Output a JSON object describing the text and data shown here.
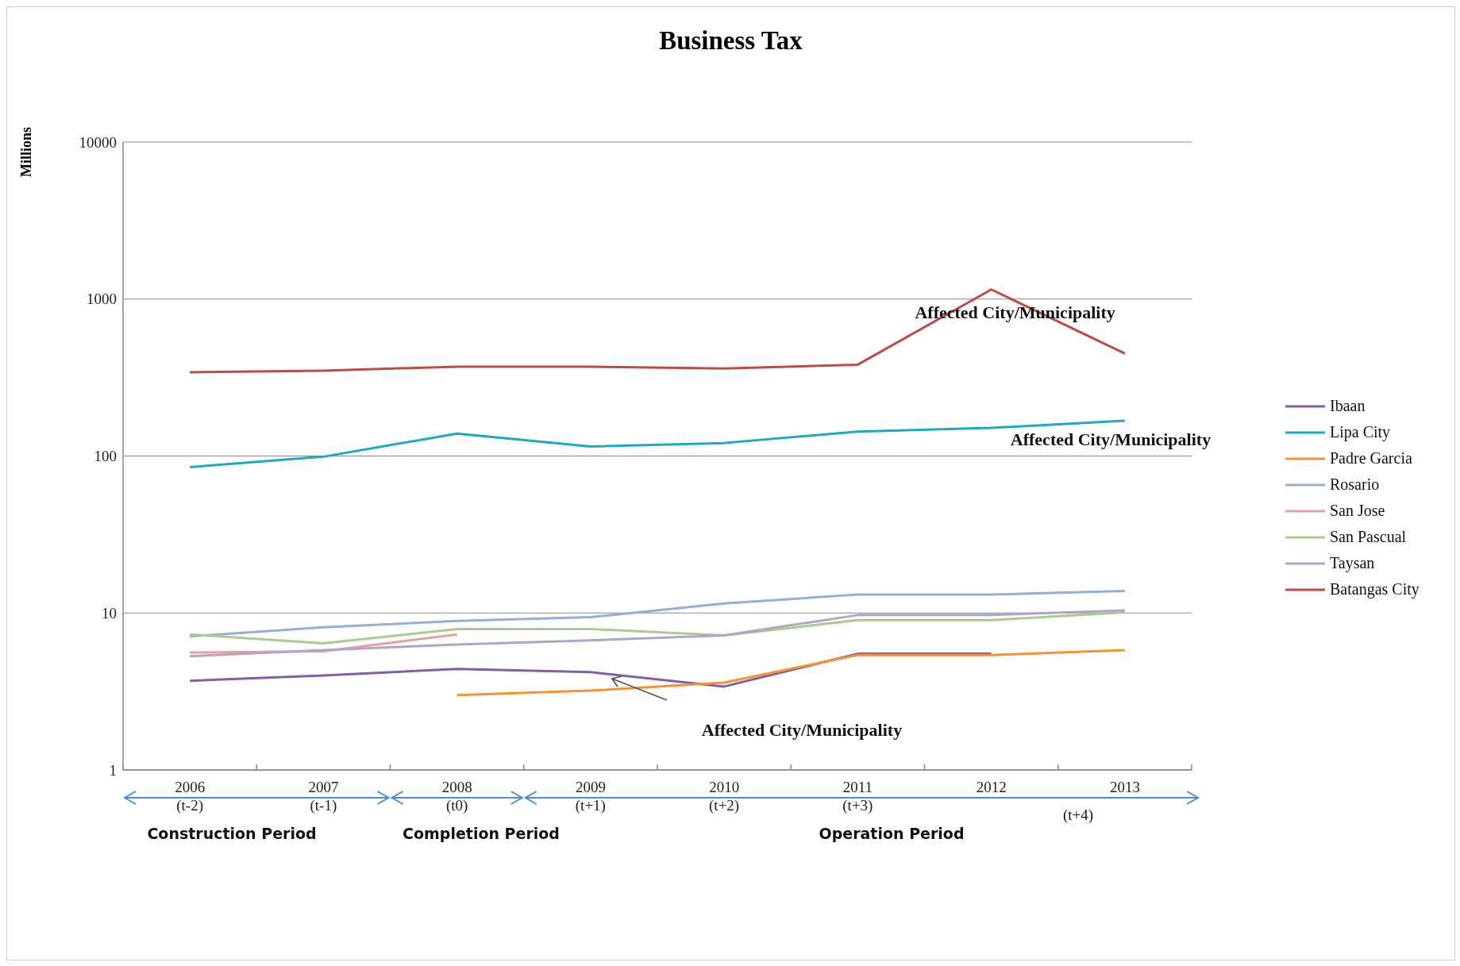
{
  "chart_data": {
    "type": "line",
    "title": "Business Tax",
    "ylabel": "Millions",
    "log": true,
    "grid": "y",
    "legend": "right",
    "marker": "none",
    "line_style": "solid",
    "categories": [
      "2006\n(t-2)",
      "2007\n(t-1)",
      "2008\n(t0)",
      "2009\n(t+1)",
      "2010\n(t+2)",
      "2011\n(t+3)",
      "2012",
      "2013"
    ],
    "ylim": [
      1,
      10000
    ],
    "yticks": [
      1,
      10,
      100,
      1000,
      10000
    ],
    "series": [
      {
        "name": "Ibaan",
        "color": "#7f5fa8",
        "values": [
          3.7,
          4.0,
          4.4,
          4.2,
          3.4,
          5.5,
          5.5,
          null
        ]
      },
      {
        "name": "Lipa City",
        "color": "#1ba9c6",
        "values": [
          85,
          99,
          139,
          115,
          121,
          143,
          151,
          168
        ]
      },
      {
        "name": "Padre Garcia",
        "color": "#f79232",
        "values": [
          null,
          null,
          3.0,
          3.2,
          3.6,
          5.4,
          5.4,
          5.8
        ]
      },
      {
        "name": "Rosario",
        "color": "#95aed6",
        "values": [
          7.1,
          8.1,
          8.9,
          9.4,
          11.5,
          13.1,
          13.1,
          13.8
        ]
      },
      {
        "name": "San Jose",
        "color": "#e6a0a0",
        "values": [
          5.6,
          5.7,
          7.3,
          null,
          null,
          null,
          null,
          null
        ]
      },
      {
        "name": "San Pascual",
        "color": "#a9cc8e",
        "values": [
          7.3,
          6.4,
          7.9,
          7.9,
          7.2,
          9.0,
          9.0,
          10.1
        ]
      },
      {
        "name": "Taysan",
        "color": "#b3a2c9",
        "values": [
          5.3,
          5.8,
          6.3,
          6.7,
          7.2,
          9.7,
          9.7,
          10.4
        ]
      },
      {
        "name": "Batangas City",
        "color": "#be4b48",
        "values": [
          342,
          350,
          371,
          371,
          361,
          382,
          1150,
          450
        ]
      }
    ],
    "annotations": [
      "Construction Period",
      "Completion Period",
      "Operation Period",
      "(t+4)",
      {
        "text": "Affected City/Municipality",
        "x": "2012",
        "y": 1150
      },
      "Affected City/Municipality",
      "Affected City/Municipality"
    ]
  }
}
